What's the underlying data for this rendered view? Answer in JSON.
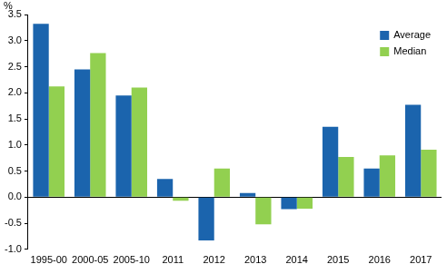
{
  "chart_data": {
    "type": "bar",
    "y_label": "%",
    "categories": [
      "1995-00",
      "2000-05",
      "2005-10",
      "2011",
      "2012",
      "2013",
      "2014",
      "2015",
      "2016",
      "2017"
    ],
    "series": [
      {
        "name": "Average",
        "color": "#1b64ad",
        "values": [
          3.32,
          2.45,
          1.95,
          0.35,
          -0.83,
          0.08,
          -0.23,
          1.35,
          0.55,
          1.77
        ]
      },
      {
        "name": "Median",
        "color": "#92d050",
        "values": [
          2.12,
          2.76,
          2.1,
          -0.07,
          0.55,
          -0.52,
          -0.22,
          0.77,
          0.8,
          0.91
        ]
      }
    ],
    "ylim": [
      -1.0,
      3.5
    ],
    "yticks": [
      {
        "value": -1.0,
        "label": "-1.0"
      },
      -0.5,
      {
        "value": 0.0,
        "label": "0.0"
      },
      0.5,
      {
        "value": 1.0,
        "label": "1.0"
      },
      1.5,
      {
        "value": 2.0,
        "label": "2.0"
      },
      2.5,
      {
        "value": 3.0,
        "label": "3.0"
      },
      3.5
    ],
    "grid": false,
    "legend": "upper right"
  }
}
